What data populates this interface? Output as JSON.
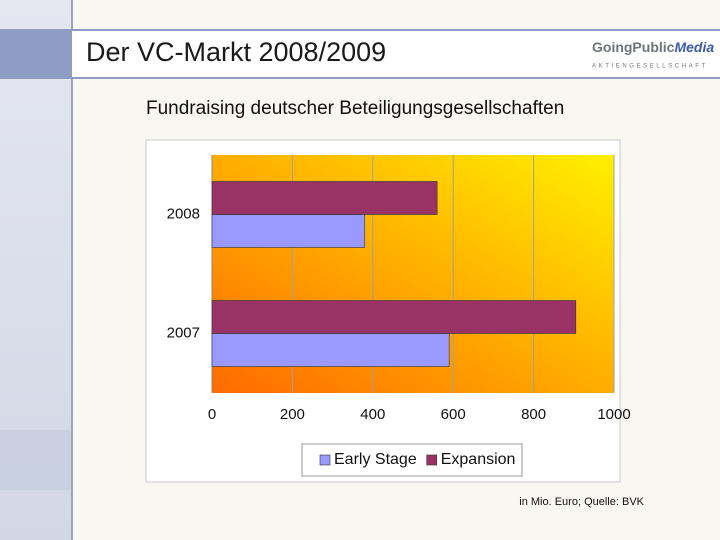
{
  "slide": {
    "title": "Der VC-Markt 2008/2009",
    "logo": {
      "name": "GoingPublic",
      "accent": "Media",
      "tagline": "AKTIENGESELLSCHAFT"
    },
    "footnote": "in Mio. Euro; Quelle: BVK"
  },
  "chart_data": {
    "type": "hbar",
    "title": "Fundraising deutscher Beteiligungsgesellschaften",
    "categories": [
      "2008",
      "2007"
    ],
    "series": [
      {
        "name": "Early Stage",
        "color": "#9999ff",
        "values": [
          380,
          590
        ]
      },
      {
        "name": "Expansion",
        "color": "#993366",
        "values": [
          560,
          905
        ]
      }
    ],
    "xlim": [
      0,
      1000
    ],
    "xticks": [
      0,
      200,
      400,
      600,
      800,
      1000
    ],
    "grid": true,
    "legend": "bottom"
  }
}
